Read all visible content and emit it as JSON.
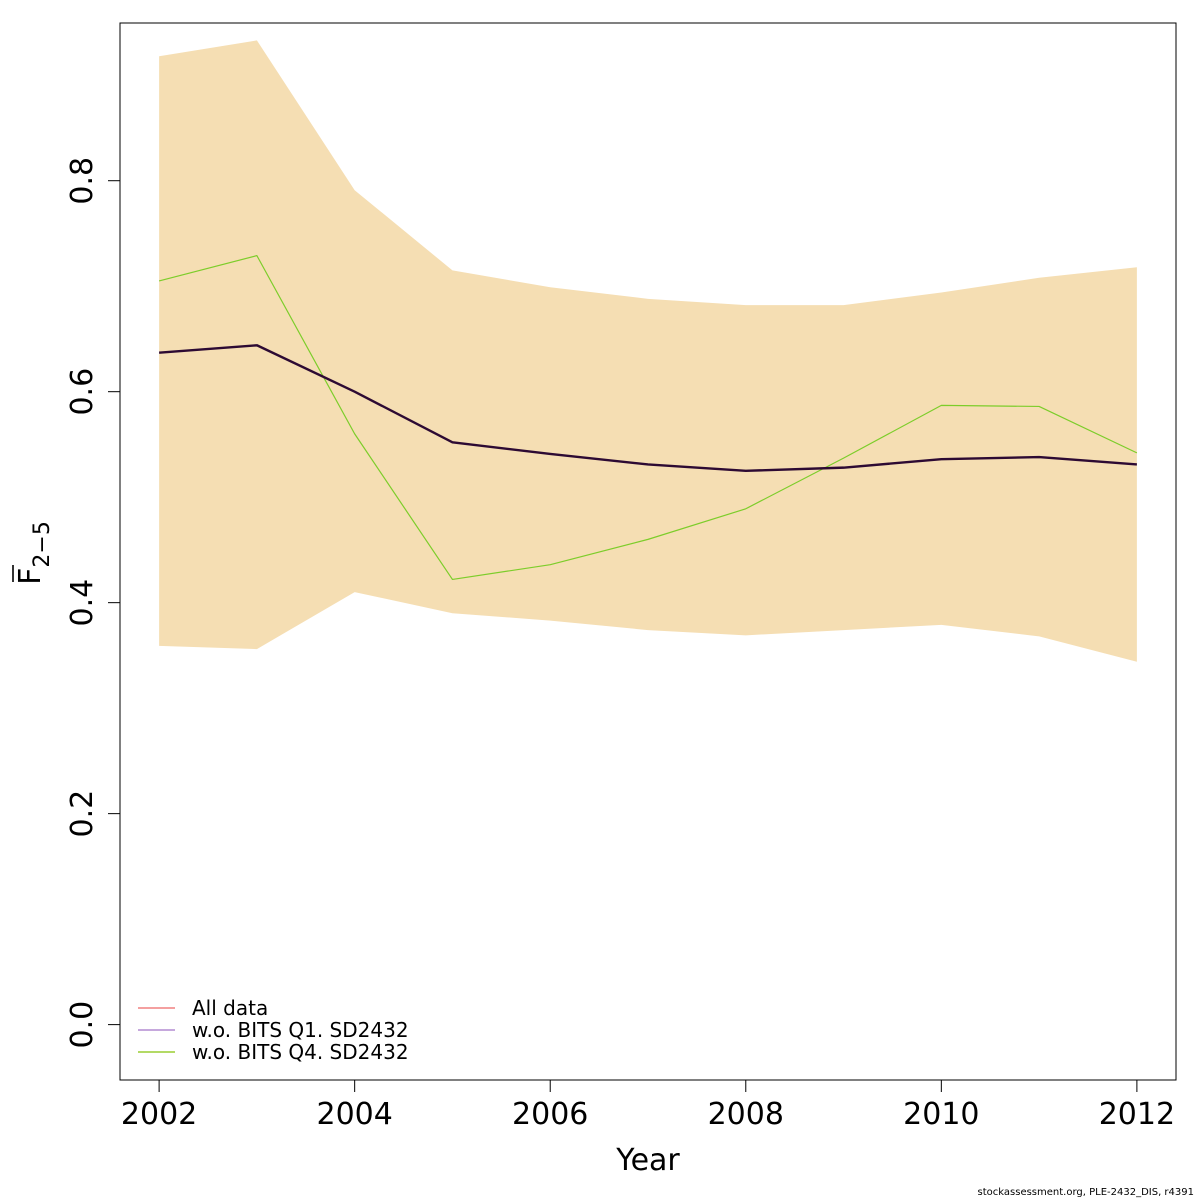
{
  "chart_data": {
    "type": "line",
    "xlabel": "Year",
    "ylabel_main": "F",
    "ylabel_subscript": "2−5",
    "xlim": [
      2001.6,
      2012.4
    ],
    "ylim": [
      -0.0525,
      0.9495
    ],
    "xticks": [
      2002,
      2004,
      2006,
      2008,
      2010,
      2012
    ],
    "yticks": [
      0.0,
      0.2,
      0.4,
      0.6,
      0.8
    ],
    "ytick_labels": [
      "0.0",
      "0.2",
      "0.4",
      "0.6",
      "0.8"
    ],
    "x": [
      2002,
      2003,
      2004,
      2005,
      2006,
      2007,
      2008,
      2009,
      2010,
      2011,
      2012
    ],
    "band": {
      "color": "#F5DEB3",
      "lower": [
        0.359,
        0.356,
        0.41,
        0.39,
        0.383,
        0.374,
        0.369,
        0.374,
        0.379,
        0.368,
        0.344
      ],
      "upper": [
        0.918,
        0.933,
        0.791,
        0.715,
        0.699,
        0.688,
        0.682,
        0.682,
        0.694,
        0.708,
        0.718
      ]
    },
    "series": [
      {
        "name": "All data",
        "color": "#2d0a33",
        "width": 2.4,
        "draw": true,
        "values": [
          0.637,
          0.644,
          0.6,
          0.552,
          0.541,
          0.531,
          0.525,
          0.528,
          0.536,
          0.538,
          0.531
        ]
      },
      {
        "name": "w.o. BITS Q4. SD2432",
        "color": "#7ccd2a",
        "width": 1.2,
        "draw": true,
        "values": [
          0.705,
          0.729,
          0.56,
          0.422,
          0.436,
          0.46,
          0.489,
          0.537,
          0.587,
          0.586,
          0.542
        ]
      }
    ],
    "legend": {
      "position": "bottom-left",
      "entries": [
        {
          "label": "All data",
          "color": "#f08080"
        },
        {
          "label": "w.o. BITS Q1. SD2432",
          "color": "#b48cd2"
        },
        {
          "label": "w.o. BITS Q4. SD2432",
          "color": "#9acd32"
        }
      ]
    }
  },
  "footer": "stockassessment.org, PLE-2432_DIS, r4391"
}
